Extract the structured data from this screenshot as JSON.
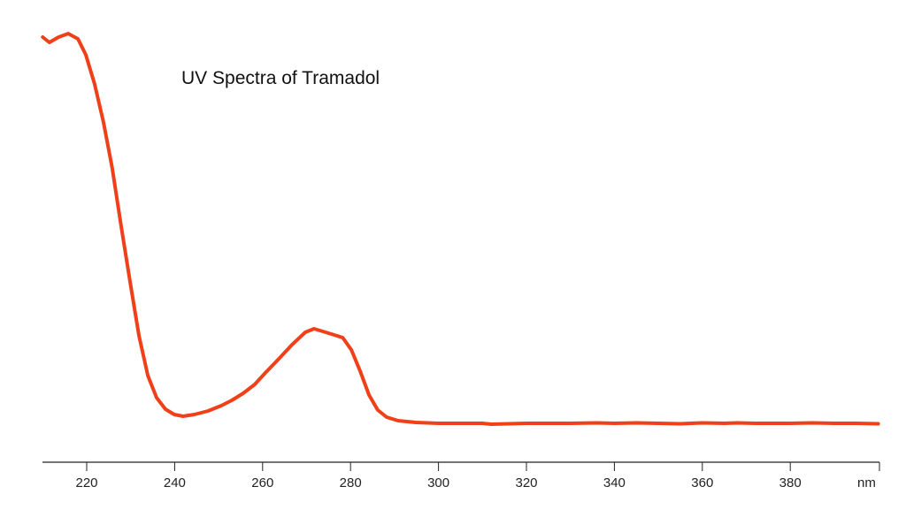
{
  "chart_data": {
    "type": "line",
    "title": "UV Spectra of Tramadol",
    "xlabel": "nm",
    "ylabel": "",
    "xlim": [
      210,
      400
    ],
    "ylim": [
      0,
      1
    ],
    "x_ticks": [
      220,
      240,
      260,
      280,
      300,
      320,
      340,
      360,
      380
    ],
    "grid": false,
    "line_color": "#f0401a",
    "series": [
      {
        "x": [
          210,
          211.5,
          213.6,
          215.8,
          218,
          219.8,
          221.8,
          223.8,
          225.8,
          227.8,
          229.9,
          231.9,
          233.9,
          235.9,
          237.9,
          239.9,
          241.9,
          244.5,
          247.6,
          250.6,
          253,
          255.6,
          258.2,
          260.6,
          263.7,
          266.7,
          269.7,
          271.7,
          273.7,
          276.3,
          278.2,
          280.2,
          282.2,
          284.2,
          286.2,
          288.2,
          290.8,
          294.8,
          300,
          310,
          312,
          320,
          330,
          336,
          340,
          345,
          350,
          355,
          360,
          365,
          368,
          372,
          380,
          385,
          390,
          395,
          400
        ],
        "y": [
          0.964,
          0.952,
          0.964,
          0.972,
          0.96,
          0.924,
          0.858,
          0.772,
          0.668,
          0.538,
          0.408,
          0.288,
          0.198,
          0.148,
          0.122,
          0.11,
          0.106,
          0.11,
          0.118,
          0.13,
          0.142,
          0.158,
          0.178,
          0.204,
          0.236,
          0.268,
          0.296,
          0.304,
          0.298,
          0.29,
          0.284,
          0.256,
          0.208,
          0.154,
          0.12,
          0.104,
          0.096,
          0.092,
          0.09,
          0.09,
          0.088,
          0.09,
          0.09,
          0.091,
          0.09,
          0.091,
          0.09,
          0.089,
          0.091,
          0.09,
          0.091,
          0.09,
          0.09,
          0.091,
          0.09,
          0.09,
          0.089
        ]
      }
    ]
  }
}
